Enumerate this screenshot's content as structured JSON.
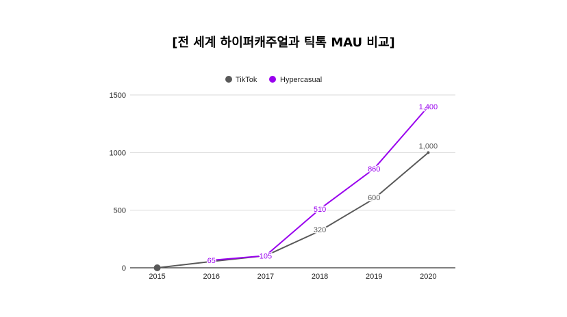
{
  "chart_data": {
    "type": "line",
    "title": "[전 세계 하이퍼캐주얼과 틱톡 MAU 비교]",
    "xlabel": "",
    "ylabel": "",
    "categories": [
      "2015",
      "2016",
      "2017",
      "2018",
      "2019",
      "2020"
    ],
    "ylim": [
      0,
      1500
    ],
    "yticks": [
      0,
      500,
      1000,
      1500
    ],
    "grid": true,
    "legend_position": "top",
    "series": [
      {
        "name": "TikTok",
        "color": "#595959",
        "values": [
          0,
          55,
          105,
          320,
          600,
          1000
        ],
        "labels": [
          "",
          "",
          "",
          "320",
          "600",
          "1,000"
        ]
      },
      {
        "name": "Hypercasual",
        "color": "#9900ee",
        "values": [
          null,
          65,
          105,
          510,
          860,
          1400
        ],
        "labels": [
          "",
          "65",
          "105",
          "510",
          "860",
          "1,400"
        ]
      }
    ]
  }
}
